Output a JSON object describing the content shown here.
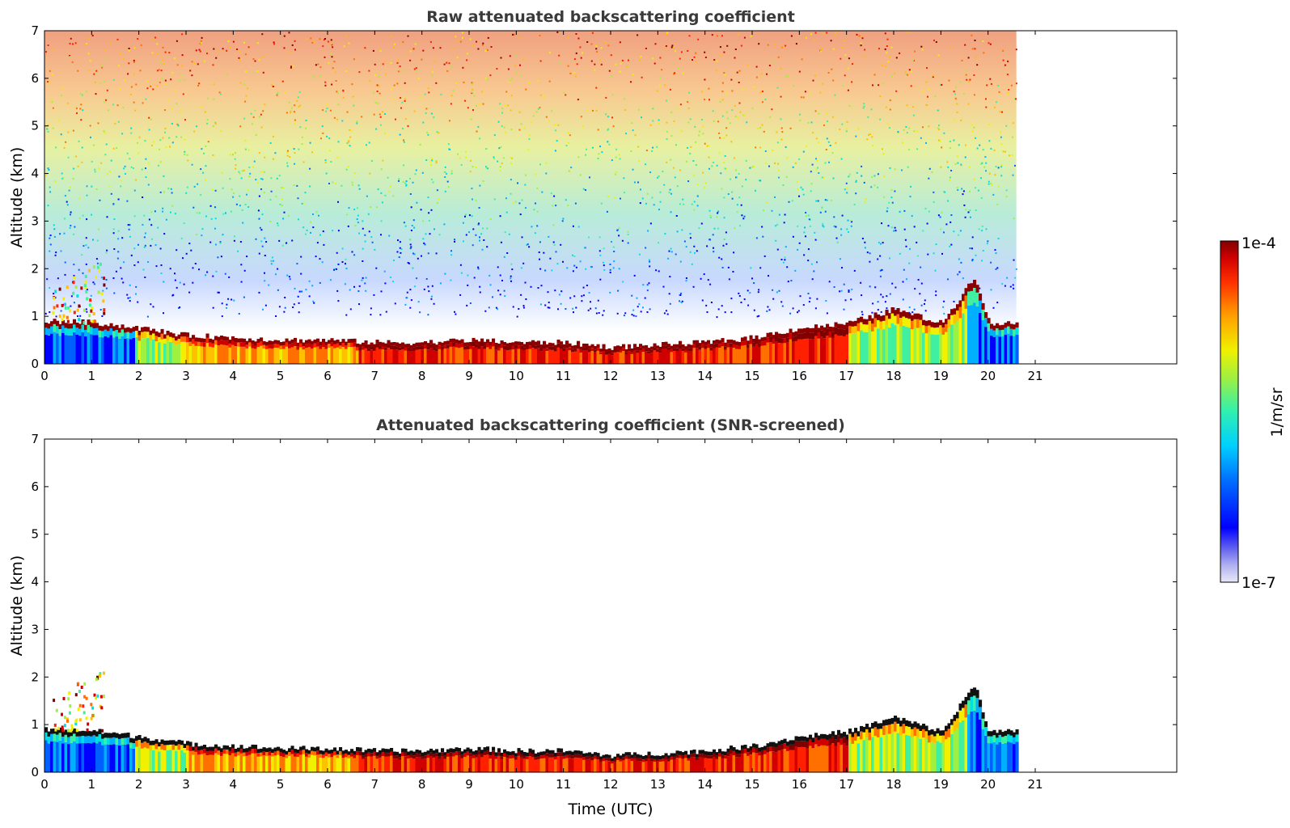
{
  "chart_data": [
    {
      "type": "heatmap",
      "title": "Raw attenuated backscattering coefficient",
      "xlabel": "",
      "ylabel": "Altitude (km)",
      "xlim": [
        0,
        24
      ],
      "ylim": [
        0,
        7
      ],
      "x_ticks": [
        "0",
        "1",
        "2",
        "3",
        "4",
        "5",
        "6",
        "7",
        "8",
        "9",
        "10",
        "11",
        "12",
        "13",
        "14",
        "15",
        "16",
        "17",
        "18",
        "19",
        "20",
        "21"
      ],
      "y_ticks": [
        "0",
        "1",
        "2",
        "3",
        "4",
        "5",
        "6",
        "7"
      ],
      "data_end_time": 20.6,
      "boundary_layer_top": [
        {
          "t": 0,
          "z": 0.85
        },
        {
          "t": 1,
          "z": 0.82
        },
        {
          "t": 2,
          "z": 0.7
        },
        {
          "t": 3,
          "z": 0.55
        },
        {
          "t": 4,
          "z": 0.5
        },
        {
          "t": 5,
          "z": 0.45
        },
        {
          "t": 6,
          "z": 0.45
        },
        {
          "t": 7,
          "z": 0.4
        },
        {
          "t": 8,
          "z": 0.4
        },
        {
          "t": 9,
          "z": 0.45
        },
        {
          "t": 10,
          "z": 0.4
        },
        {
          "t": 11,
          "z": 0.4
        },
        {
          "t": 12,
          "z": 0.3
        },
        {
          "t": 13,
          "z": 0.35
        },
        {
          "t": 14,
          "z": 0.4
        },
        {
          "t": 15,
          "z": 0.5
        },
        {
          "t": 16,
          "z": 0.7
        },
        {
          "t": 17,
          "z": 0.8
        },
        {
          "t": 18,
          "z": 1.1
        },
        {
          "t": 19,
          "z": 0.8
        },
        {
          "t": 19.7,
          "z": 1.8
        },
        {
          "t": 20,
          "z": 0.8
        },
        {
          "t": 20.6,
          "z": 0.8
        }
      ]
    },
    {
      "type": "heatmap",
      "title": "Attenuated backscattering coefficient (SNR-screened)",
      "xlabel": "Time (UTC)",
      "ylabel": "Altitude (km)",
      "xlim": [
        0,
        24
      ],
      "ylim": [
        0,
        7
      ],
      "x_ticks": [
        "0",
        "1",
        "2",
        "3",
        "4",
        "5",
        "6",
        "7",
        "8",
        "9",
        "10",
        "11",
        "12",
        "13",
        "14",
        "15",
        "16",
        "17",
        "18",
        "19",
        "20",
        "21"
      ],
      "y_ticks": [
        "0",
        "1",
        "2",
        "3",
        "4",
        "5",
        "6",
        "7"
      ],
      "data_end_time": 20.6
    }
  ],
  "colorbar": {
    "max_label": "1e-4",
    "min_label": "1e-7",
    "unit": "1/m/sr",
    "colors": [
      "#e8e8f8",
      "#b0b0f0",
      "#7070f0",
      "#0000ff",
      "#0060ff",
      "#00b0ff",
      "#00e0e0",
      "#40f0a0",
      "#a0f040",
      "#f0f000",
      "#ffc000",
      "#ff7000",
      "#ff2000",
      "#d00000",
      "#800000"
    ]
  }
}
